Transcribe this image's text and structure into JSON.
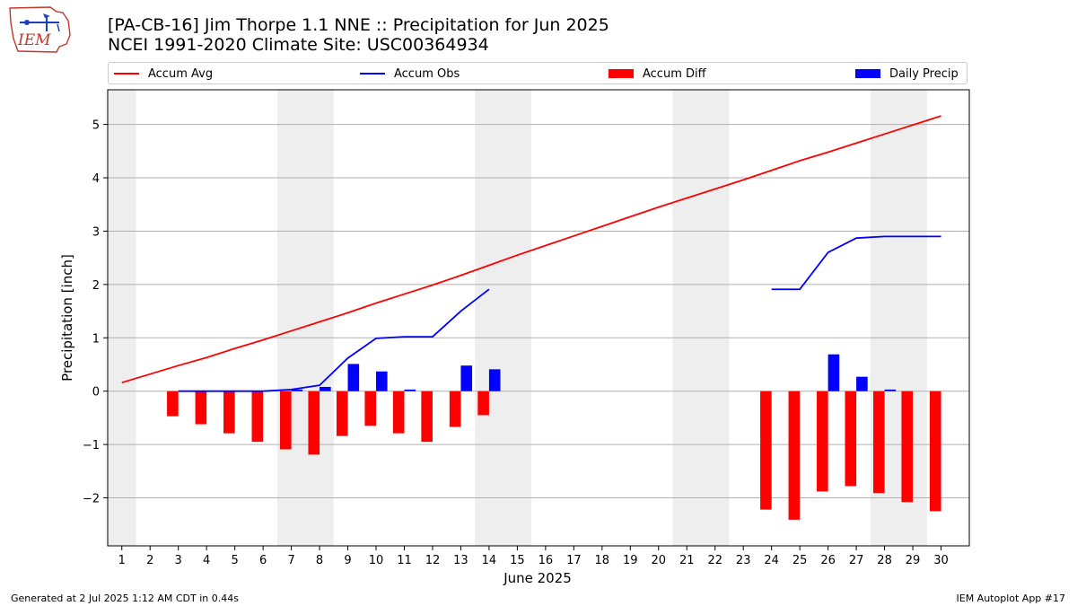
{
  "header": {
    "title": "[PA-CB-16] Jim Thorpe 1.1 NNE :: Precipitation for Jun 2025",
    "subtitle": "NCEI 1991-2020 Climate Site: USC00364934",
    "logo_text": "IEM"
  },
  "legend": {
    "accum_avg": "Accum Avg",
    "accum_obs": "Accum Obs",
    "accum_diff": "Accum Diff",
    "daily_precip": "Daily Precip"
  },
  "footer": {
    "generated": "Generated at 2 Jul 2025 1:12 AM CDT in 0.44s",
    "app": "IEM Autoplot App #17"
  },
  "colors": {
    "accum_avg": "#ff0000",
    "accum_obs": "#0000ff",
    "accum_diff": "#ff0000",
    "daily_precip": "#0000ff",
    "weekend_shade": "#eeeeee",
    "grid": "#b0b0b0"
  },
  "chart_data": {
    "type": "bar",
    "xlabel": "June 2025",
    "ylabel": "Precipitation [inch]",
    "xlim": [
      0.5,
      31
    ],
    "ylim": [
      -2.9,
      5.65
    ],
    "yticks": [
      -2,
      -1,
      0,
      1,
      2,
      3,
      4,
      5
    ],
    "ytick_labels": [
      "−2",
      "−1",
      "0",
      "1",
      "2",
      "3",
      "4",
      "5"
    ],
    "xticks": [
      1,
      2,
      3,
      4,
      5,
      6,
      7,
      8,
      9,
      10,
      11,
      12,
      13,
      14,
      15,
      16,
      17,
      18,
      19,
      20,
      21,
      22,
      23,
      24,
      25,
      26,
      27,
      28,
      29,
      30
    ],
    "grid": "horizontal",
    "legend_position": "top",
    "weekend_spans": [
      [
        0.5,
        1.5
      ],
      [
        6.5,
        8.5
      ],
      [
        13.5,
        15.5
      ],
      [
        20.5,
        22.5
      ],
      [
        27.5,
        29.5
      ]
    ],
    "series": [
      {
        "name": "Accum Avg",
        "kind": "line",
        "x": [
          1,
          2,
          3,
          4,
          5,
          6,
          7,
          8,
          9,
          10,
          11,
          12,
          13,
          14,
          15,
          16,
          17,
          18,
          19,
          20,
          21,
          22,
          23,
          24,
          25,
          26,
          27,
          28,
          29,
          30
        ],
        "values": [
          0.16,
          0.32,
          0.48,
          0.63,
          0.8,
          0.96,
          1.13,
          1.3,
          1.47,
          1.65,
          1.82,
          1.99,
          2.17,
          2.36,
          2.55,
          2.73,
          2.91,
          3.09,
          3.27,
          3.45,
          3.62,
          3.79,
          3.96,
          4.14,
          4.32,
          4.48,
          4.65,
          4.82,
          4.99,
          5.16
        ]
      },
      {
        "name": "Accum Obs",
        "kind": "line",
        "x": [
          3,
          4,
          5,
          6,
          7,
          8,
          9,
          10,
          11,
          12,
          13,
          14,
          24,
          25,
          26,
          27,
          28,
          29,
          30
        ],
        "values": [
          0.0,
          0.0,
          0.0,
          0.0,
          0.03,
          0.11,
          0.62,
          0.99,
          1.02,
          1.02,
          1.5,
          1.91,
          1.91,
          1.91,
          2.6,
          2.87,
          2.9,
          2.9,
          2.9
        ],
        "gap_after_x": 14
      },
      {
        "name": "Accum Diff",
        "kind": "bar",
        "x": [
          3,
          4,
          5,
          6,
          7,
          8,
          9,
          10,
          11,
          12,
          13,
          14,
          24,
          25,
          26,
          27,
          28,
          29,
          30
        ],
        "values": [
          -0.47,
          -0.62,
          -0.79,
          -0.95,
          -1.09,
          -1.19,
          -0.84,
          -0.65,
          -0.79,
          -0.95,
          -0.67,
          -0.45,
          -2.22,
          -2.41,
          -1.88,
          -1.78,
          -1.91,
          -2.08,
          -2.25
        ]
      },
      {
        "name": "Daily Precip",
        "kind": "bar",
        "x": [
          3,
          4,
          5,
          6,
          7,
          8,
          9,
          10,
          11,
          12,
          13,
          14,
          24,
          25,
          26,
          27,
          28,
          29,
          30
        ],
        "values": [
          0,
          0,
          0,
          0,
          0.03,
          0.08,
          0.51,
          0.37,
          0.03,
          0,
          0.48,
          0.41,
          0,
          0,
          0.69,
          0.27,
          0.03,
          0,
          0
        ]
      }
    ]
  }
}
